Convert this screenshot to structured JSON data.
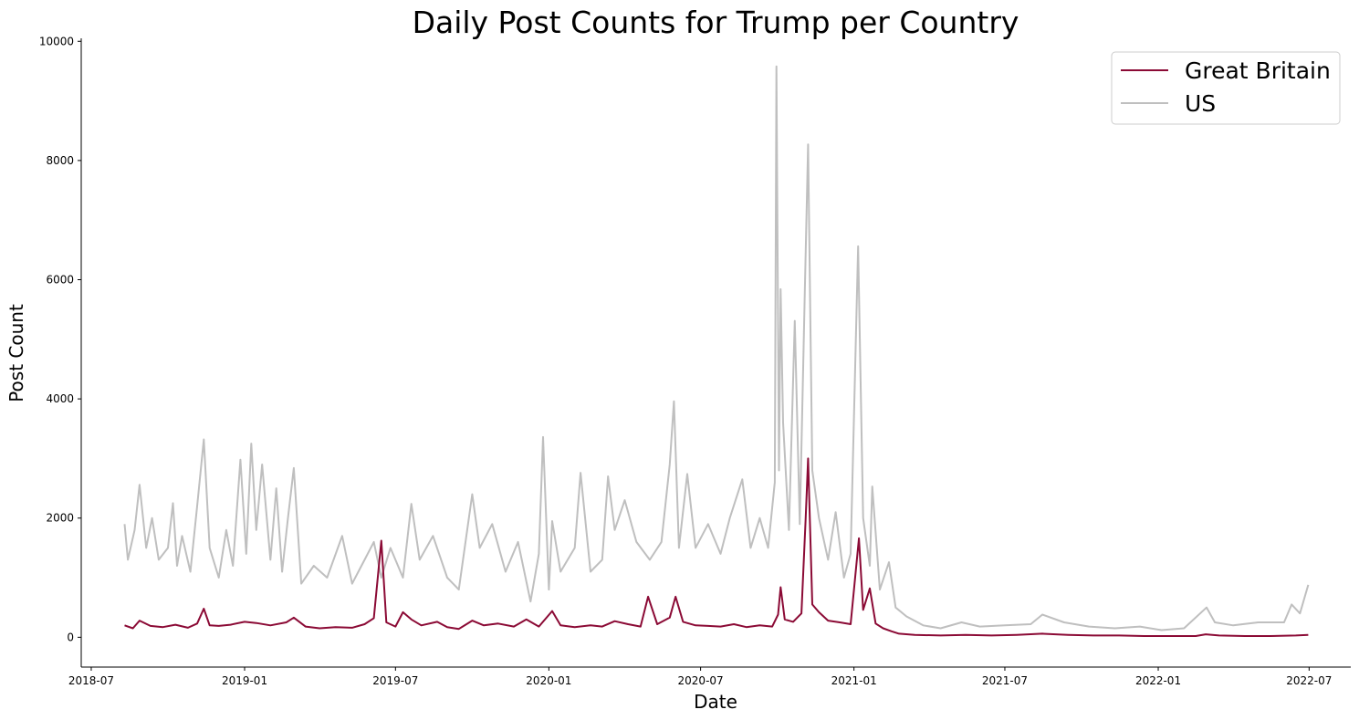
{
  "chart_data": {
    "type": "line",
    "title": "Daily Post Counts for Trump per Country",
    "xlabel": "Date",
    "ylabel": "Post Count",
    "xlim": [
      "2018-06-19",
      "2022-08-20"
    ],
    "ylim": [
      -500,
      10050
    ],
    "x_ticks": [
      "2018-07-01",
      "2019-01-01",
      "2019-07-01",
      "2020-01-01",
      "2020-07-01",
      "2021-01-01",
      "2021-07-01",
      "2022-01-01",
      "2022-07-01"
    ],
    "x_tick_labels": [
      "2018-07",
      "2019-01",
      "2019-07",
      "2020-01",
      "2020-07",
      "2021-01",
      "2021-07",
      "2022-01",
      "2022-07"
    ],
    "y_ticks": [
      0,
      2000,
      4000,
      6000,
      8000,
      10000
    ],
    "y_tick_labels": [
      "0",
      "2000",
      "4000",
      "6000",
      "8000",
      "10000"
    ],
    "grid": false,
    "legend_position": "top-right",
    "series": [
      {
        "name": "Great Britain",
        "color": "#8b0a35",
        "points": [
          [
            "2018-08-10",
            200
          ],
          [
            "2018-08-20",
            150
          ],
          [
            "2018-08-28",
            280
          ],
          [
            "2018-09-10",
            190
          ],
          [
            "2018-09-25",
            170
          ],
          [
            "2018-10-10",
            210
          ],
          [
            "2018-10-25",
            160
          ],
          [
            "2018-11-05",
            230
          ],
          [
            "2018-11-13",
            480
          ],
          [
            "2018-11-20",
            200
          ],
          [
            "2018-12-01",
            190
          ],
          [
            "2018-12-15",
            210
          ],
          [
            "2019-01-01",
            260
          ],
          [
            "2019-01-15",
            240
          ],
          [
            "2019-02-01",
            200
          ],
          [
            "2019-02-20",
            250
          ],
          [
            "2019-03-01",
            330
          ],
          [
            "2019-03-15",
            180
          ],
          [
            "2019-04-01",
            150
          ],
          [
            "2019-04-20",
            170
          ],
          [
            "2019-05-10",
            160
          ],
          [
            "2019-05-25",
            220
          ],
          [
            "2019-06-05",
            320
          ],
          [
            "2019-06-14",
            1620
          ],
          [
            "2019-06-20",
            250
          ],
          [
            "2019-07-01",
            180
          ],
          [
            "2019-07-10",
            420
          ],
          [
            "2019-07-20",
            300
          ],
          [
            "2019-08-01",
            200
          ],
          [
            "2019-08-20",
            260
          ],
          [
            "2019-09-01",
            170
          ],
          [
            "2019-09-15",
            140
          ],
          [
            "2019-10-01",
            280
          ],
          [
            "2019-10-15",
            200
          ],
          [
            "2019-11-01",
            230
          ],
          [
            "2019-11-20",
            180
          ],
          [
            "2019-12-05",
            300
          ],
          [
            "2019-12-20",
            180
          ],
          [
            "2020-01-05",
            440
          ],
          [
            "2020-01-15",
            200
          ],
          [
            "2020-02-01",
            170
          ],
          [
            "2020-02-20",
            200
          ],
          [
            "2020-03-05",
            180
          ],
          [
            "2020-03-20",
            270
          ],
          [
            "2020-04-05",
            220
          ],
          [
            "2020-04-20",
            180
          ],
          [
            "2020-04-29",
            680
          ],
          [
            "2020-05-10",
            220
          ],
          [
            "2020-05-25",
            330
          ],
          [
            "2020-06-01",
            680
          ],
          [
            "2020-06-10",
            260
          ],
          [
            "2020-06-25",
            200
          ],
          [
            "2020-07-10",
            190
          ],
          [
            "2020-07-25",
            180
          ],
          [
            "2020-08-10",
            220
          ],
          [
            "2020-08-25",
            170
          ],
          [
            "2020-09-10",
            200
          ],
          [
            "2020-09-25",
            180
          ],
          [
            "2020-10-02",
            380
          ],
          [
            "2020-10-05",
            840
          ],
          [
            "2020-10-10",
            300
          ],
          [
            "2020-10-20",
            260
          ],
          [
            "2020-10-30",
            400
          ],
          [
            "2020-11-04",
            1980
          ],
          [
            "2020-11-07",
            3000
          ],
          [
            "2020-11-12",
            550
          ],
          [
            "2020-11-20",
            420
          ],
          [
            "2020-12-01",
            280
          ],
          [
            "2020-12-15",
            250
          ],
          [
            "2020-12-28",
            220
          ],
          [
            "2021-01-07",
            1660
          ],
          [
            "2021-01-12",
            460
          ],
          [
            "2021-01-20",
            820
          ],
          [
            "2021-01-27",
            230
          ],
          [
            "2021-02-05",
            150
          ],
          [
            "2021-02-15",
            100
          ],
          [
            "2021-02-24",
            60
          ],
          [
            "2021-03-15",
            40
          ],
          [
            "2021-04-15",
            30
          ],
          [
            "2021-05-15",
            40
          ],
          [
            "2021-06-15",
            30
          ],
          [
            "2021-07-15",
            40
          ],
          [
            "2021-08-15",
            60
          ],
          [
            "2021-09-15",
            40
          ],
          [
            "2021-10-15",
            30
          ],
          [
            "2021-11-15",
            30
          ],
          [
            "2021-12-15",
            20
          ],
          [
            "2022-01-15",
            20
          ],
          [
            "2022-02-15",
            20
          ],
          [
            "2022-02-27",
            50
          ],
          [
            "2022-03-15",
            30
          ],
          [
            "2022-04-15",
            20
          ],
          [
            "2022-05-15",
            20
          ],
          [
            "2022-06-15",
            30
          ],
          [
            "2022-06-30",
            40
          ]
        ]
      },
      {
        "name": "US",
        "color": "#bfbfbf",
        "points": [
          [
            "2018-08-10",
            1900
          ],
          [
            "2018-08-14",
            1300
          ],
          [
            "2018-08-22",
            1800
          ],
          [
            "2018-08-28",
            2560
          ],
          [
            "2018-09-05",
            1500
          ],
          [
            "2018-09-12",
            2000
          ],
          [
            "2018-09-20",
            1300
          ],
          [
            "2018-10-01",
            1500
          ],
          [
            "2018-10-07",
            2250
          ],
          [
            "2018-10-12",
            1200
          ],
          [
            "2018-10-18",
            1700
          ],
          [
            "2018-10-28",
            1100
          ],
          [
            "2018-11-05",
            2200
          ],
          [
            "2018-11-13",
            3320
          ],
          [
            "2018-11-20",
            1500
          ],
          [
            "2018-12-01",
            1000
          ],
          [
            "2018-12-10",
            1800
          ],
          [
            "2018-12-18",
            1200
          ],
          [
            "2018-12-27",
            2980
          ],
          [
            "2019-01-03",
            1400
          ],
          [
            "2019-01-09",
            3250
          ],
          [
            "2019-01-15",
            1800
          ],
          [
            "2019-01-22",
            2900
          ],
          [
            "2019-02-01",
            1300
          ],
          [
            "2019-02-08",
            2500
          ],
          [
            "2019-02-15",
            1100
          ],
          [
            "2019-02-22",
            2000
          ],
          [
            "2019-03-01",
            2840
          ],
          [
            "2019-03-10",
            900
          ],
          [
            "2019-03-25",
            1200
          ],
          [
            "2019-04-10",
            1000
          ],
          [
            "2019-04-28",
            1700
          ],
          [
            "2019-05-10",
            900
          ],
          [
            "2019-05-25",
            1300
          ],
          [
            "2019-06-05",
            1600
          ],
          [
            "2019-06-14",
            1000
          ],
          [
            "2019-06-25",
            1500
          ],
          [
            "2019-07-10",
            1000
          ],
          [
            "2019-07-20",
            2240
          ],
          [
            "2019-07-30",
            1300
          ],
          [
            "2019-08-15",
            1700
          ],
          [
            "2019-09-01",
            1000
          ],
          [
            "2019-09-15",
            800
          ],
          [
            "2019-10-01",
            2400
          ],
          [
            "2019-10-10",
            1500
          ],
          [
            "2019-10-25",
            1900
          ],
          [
            "2019-11-10",
            1100
          ],
          [
            "2019-11-25",
            1600
          ],
          [
            "2019-12-10",
            600
          ],
          [
            "2019-12-20",
            1400
          ],
          [
            "2019-12-25",
            3360
          ],
          [
            "2020-01-01",
            800
          ],
          [
            "2020-01-05",
            1950
          ],
          [
            "2020-01-15",
            1100
          ],
          [
            "2020-02-01",
            1500
          ],
          [
            "2020-02-08",
            2760
          ],
          [
            "2020-02-20",
            1100
          ],
          [
            "2020-03-05",
            1300
          ],
          [
            "2020-03-12",
            2700
          ],
          [
            "2020-03-20",
            1800
          ],
          [
            "2020-04-01",
            2300
          ],
          [
            "2020-04-15",
            1600
          ],
          [
            "2020-05-01",
            1300
          ],
          [
            "2020-05-15",
            1600
          ],
          [
            "2020-05-25",
            2900
          ],
          [
            "2020-05-30",
            3960
          ],
          [
            "2020-06-05",
            1500
          ],
          [
            "2020-06-15",
            2740
          ],
          [
            "2020-06-25",
            1500
          ],
          [
            "2020-07-10",
            1900
          ],
          [
            "2020-07-25",
            1400
          ],
          [
            "2020-08-05",
            2000
          ],
          [
            "2020-08-20",
            2650
          ],
          [
            "2020-08-30",
            1500
          ],
          [
            "2020-09-10",
            2000
          ],
          [
            "2020-09-20",
            1500
          ],
          [
            "2020-09-28",
            2600
          ],
          [
            "2020-09-30",
            9580
          ],
          [
            "2020-10-03",
            2800
          ],
          [
            "2020-10-05",
            5840
          ],
          [
            "2020-10-08",
            3600
          ],
          [
            "2020-10-15",
            1800
          ],
          [
            "2020-10-22",
            5310
          ],
          [
            "2020-10-28",
            1900
          ],
          [
            "2020-11-03",
            5800
          ],
          [
            "2020-11-07",
            8270
          ],
          [
            "2020-11-12",
            2800
          ],
          [
            "2020-11-20",
            2000
          ],
          [
            "2020-12-01",
            1300
          ],
          [
            "2020-12-10",
            2100
          ],
          [
            "2020-12-20",
            1000
          ],
          [
            "2020-12-28",
            1400
          ],
          [
            "2021-01-06",
            6560
          ],
          [
            "2021-01-12",
            2000
          ],
          [
            "2021-01-20",
            1200
          ],
          [
            "2021-01-23",
            2530
          ],
          [
            "2021-02-01",
            800
          ],
          [
            "2021-02-12",
            1260
          ],
          [
            "2021-02-20",
            500
          ],
          [
            "2021-03-05",
            350
          ],
          [
            "2021-03-25",
            200
          ],
          [
            "2021-04-15",
            150
          ],
          [
            "2021-05-10",
            250
          ],
          [
            "2021-06-01",
            180
          ],
          [
            "2021-07-01",
            200
          ],
          [
            "2021-08-01",
            220
          ],
          [
            "2021-08-15",
            380
          ],
          [
            "2021-09-10",
            250
          ],
          [
            "2021-10-10",
            180
          ],
          [
            "2021-11-10",
            150
          ],
          [
            "2021-12-10",
            180
          ],
          [
            "2022-01-05",
            120
          ],
          [
            "2022-02-01",
            150
          ],
          [
            "2022-02-28",
            500
          ],
          [
            "2022-03-10",
            250
          ],
          [
            "2022-04-01",
            200
          ],
          [
            "2022-05-01",
            250
          ],
          [
            "2022-06-01",
            250
          ],
          [
            "2022-06-10",
            550
          ],
          [
            "2022-06-20",
            400
          ],
          [
            "2022-06-30",
            880
          ]
        ]
      }
    ]
  }
}
